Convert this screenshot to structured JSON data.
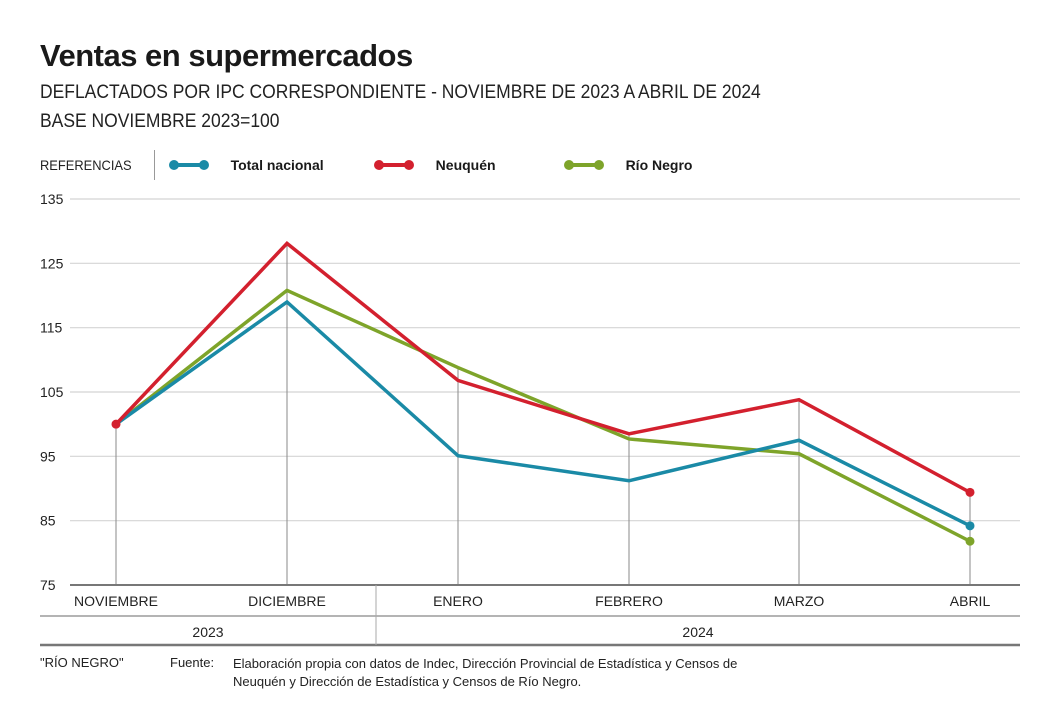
{
  "header": {
    "title": "Ventas en supermercados",
    "subtitle_1": "DEFLACTADOS POR IPC CORRESPONDIENTE - NOVIEMBRE DE 2023 A ABRIL DE 2024",
    "subtitle_2": "BASE NOVIEMBRE 2023=100"
  },
  "legend": {
    "label": "REFERENCIAS",
    "items": [
      {
        "name": "Total nacional",
        "color": "#1a8aa6"
      },
      {
        "name": "Neuquén",
        "color": "#d3202e"
      },
      {
        "name": "Río Negro",
        "color": "#7ea42a"
      }
    ]
  },
  "chart_data": {
    "type": "line",
    "title": "Ventas en supermercados",
    "subtitle": "DEFLACTADOS POR IPC CORRESPONDIENTE - NOVIEMBRE DE 2023 A ABRIL DE 2024 / BASE NOVIEMBRE 2023=100",
    "categories": [
      "NOVIEMBRE",
      "DICIEMBRE",
      "ENERO",
      "FEBRERO",
      "MARZO",
      "ABRIL"
    ],
    "year_groups": [
      {
        "label": "2023",
        "span": 2
      },
      {
        "label": "2024",
        "span": 4
      }
    ],
    "yticks": [
      135,
      125,
      115,
      105,
      95,
      85,
      75
    ],
    "ylim": [
      75,
      135
    ],
    "grid": true,
    "legend_position": "top",
    "series": [
      {
        "name": "Total nacional",
        "color": "#1a8aa6",
        "values": [
          100,
          119.0,
          95.1,
          91.2,
          97.5,
          84.2
        ]
      },
      {
        "name": "Neuquén",
        "color": "#d3202e",
        "values": [
          100,
          128.1,
          106.8,
          98.5,
          103.8,
          89.4
        ]
      },
      {
        "name": "Río Negro",
        "color": "#7ea42a",
        "values": [
          100,
          120.8,
          108.8,
          97.7,
          95.4,
          81.8
        ]
      }
    ],
    "xlabel": "",
    "ylabel": ""
  },
  "footer": {
    "credit": "\"RÍO NEGRO\"",
    "source_label": "Fuente:",
    "source_text": "Elaboración propia con datos de Indec, Dirección Provincial de Estadística y Censos de Neuquén y Dirección de Estadística y Censos de Río Negro."
  }
}
